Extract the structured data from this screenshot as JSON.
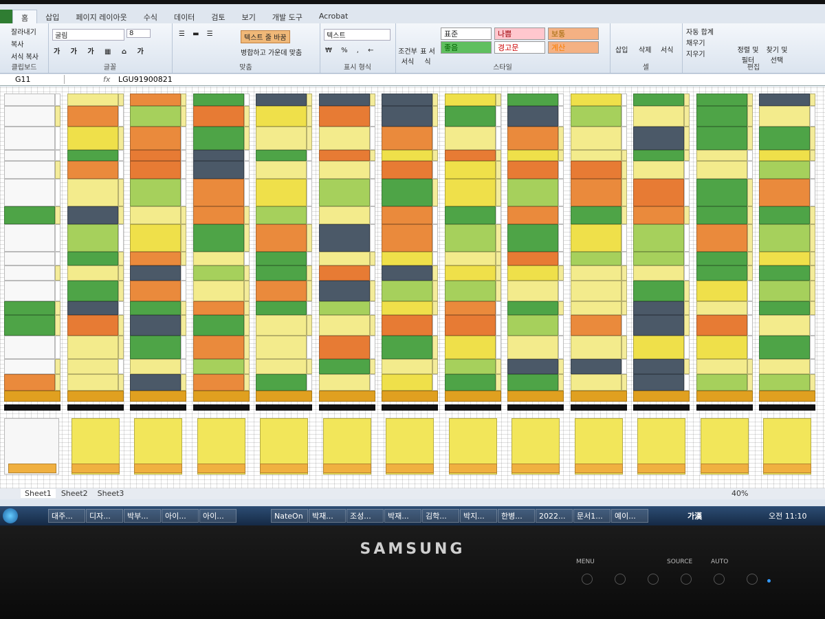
{
  "ribbon": {
    "tabs": [
      "홈",
      "삽입",
      "페이지 레이아웃",
      "수식",
      "데이터",
      "검토",
      "보기",
      "개발 도구",
      "Acrobat"
    ],
    "clipboard": {
      "cut": "잘라내기",
      "copy": "복사",
      "format_painter": "서식 복사",
      "caption": "클립보드"
    },
    "font": {
      "name": "굴림",
      "size": "8",
      "caption": "글꼴"
    },
    "alignment": {
      "wrap": "텍스트 줄 바꿈",
      "merge": "병합하고 가운데 맞춤",
      "caption": "맞춤"
    },
    "number": {
      "format": "텍스트",
      "caption": "표시 형식"
    },
    "styles": {
      "conditional": "조건부 서식",
      "table": "표 서식",
      "cells": [
        "표준",
        "나쁨",
        "보통",
        "좋음",
        "경고문",
        "계산"
      ],
      "caption": "스타일"
    },
    "cells": {
      "insert": "삽입",
      "delete": "삭제",
      "format": "서식",
      "caption": "셀"
    },
    "editing": {
      "autosum": "자동 합계",
      "fill": "채우기",
      "clear": "지우기",
      "sort": "정렬 및 필터",
      "find": "찾기 및 선택",
      "caption": "편집"
    }
  },
  "formula_bar": {
    "name_box": "G11",
    "content": "LGU91900821"
  },
  "sheets": [
    "Sheet1",
    "Sheet2",
    "Sheet3"
  ],
  "zoom": "40%",
  "taskbar": {
    "items": [
      "대주...",
      "디자...",
      "박부...",
      "아이...",
      "아이...",
      "NateOn",
      "박재...",
      "조성...",
      "박재...",
      "김학...",
      "박지...",
      "한병...",
      "2022...",
      "문서1...",
      "예이..."
    ],
    "ime": "가漢",
    "clock": "오전 11:10"
  },
  "monitor": {
    "brand": "SAMSUNG",
    "buttons": [
      "MENU",
      "SOURCE",
      "AUTO"
    ]
  }
}
